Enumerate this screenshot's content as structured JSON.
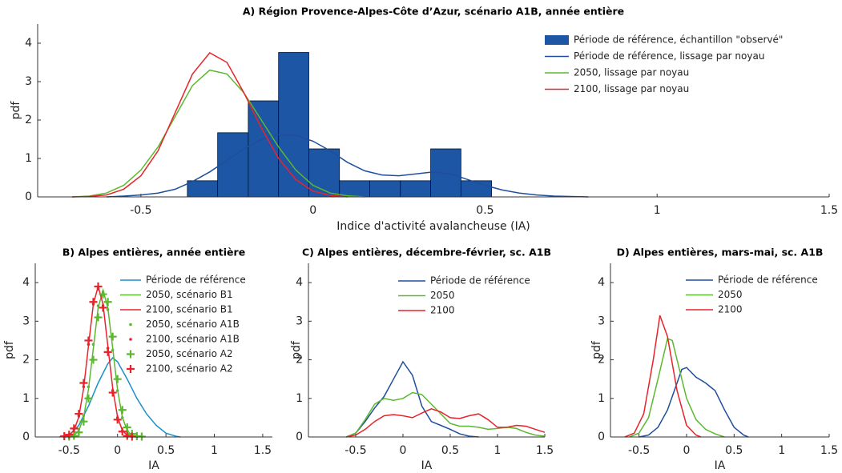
{
  "chart_data": [
    {
      "type": "histogram",
      "title": "A) Région Provence-Alpes-Côte d’Azur, scénario A1B, année entière",
      "xlabel": "Indice d'activité avalancheuse (IA)",
      "ylabel": "pdf",
      "xlim": [
        -0.8,
        1.5
      ],
      "ylim": [
        0,
        4.5
      ],
      "xticks": [
        -0.5,
        0,
        0.5,
        1,
        1.5
      ],
      "yticks": [
        0,
        1,
        2,
        3,
        4
      ],
      "legend": "upper right",
      "name": "Période de référence, échantillon \"observé\"",
      "color": "#1d56a5",
      "bins": [
        -0.365,
        -0.277,
        -0.188,
        -0.1,
        -0.012,
        0.077,
        0.165,
        0.254,
        0.342,
        0.43,
        0.519
      ],
      "values": [
        0.42,
        1.67,
        2.5,
        3.76,
        1.25,
        0.42,
        0.42,
        0.42,
        1.25,
        0.42
      ],
      "series": [
        {
          "name": "Période de référence, lissage par noyau",
          "color": "#1f4e9c",
          "style": "line",
          "x": [
            -0.6,
            -0.55,
            -0.5,
            -0.45,
            -0.4,
            -0.35,
            -0.3,
            -0.25,
            -0.2,
            -0.15,
            -0.1,
            -0.05,
            0,
            0.05,
            0.1,
            0.15,
            0.2,
            0.25,
            0.3,
            0.35,
            0.4,
            0.45,
            0.5,
            0.55,
            0.6,
            0.65,
            0.7,
            0.75,
            0.8
          ],
          "values": [
            0,
            0.02,
            0.05,
            0.1,
            0.2,
            0.4,
            0.65,
            0.95,
            1.25,
            1.5,
            1.62,
            1.6,
            1.45,
            1.2,
            0.9,
            0.68,
            0.57,
            0.55,
            0.6,
            0.65,
            0.6,
            0.45,
            0.3,
            0.18,
            0.1,
            0.05,
            0.02,
            0.01,
            0
          ]
        },
        {
          "name": "2050, lissage par noyau",
          "color": "#5cb82e",
          "style": "line",
          "x": [
            -0.7,
            -0.65,
            -0.6,
            -0.55,
            -0.5,
            -0.45,
            -0.4,
            -0.35,
            -0.3,
            -0.25,
            -0.2,
            -0.15,
            -0.1,
            -0.05,
            0,
            0.05,
            0.1,
            0.15
          ],
          "values": [
            0,
            0.02,
            0.1,
            0.3,
            0.7,
            1.3,
            2.1,
            2.9,
            3.3,
            3.2,
            2.7,
            2.0,
            1.3,
            0.7,
            0.3,
            0.1,
            0.03,
            0
          ]
        },
        {
          "name": "2100, lissage par noyau",
          "color": "#e8232a",
          "style": "line",
          "x": [
            -0.7,
            -0.65,
            -0.6,
            -0.55,
            -0.5,
            -0.45,
            -0.4,
            -0.35,
            -0.3,
            -0.25,
            -0.2,
            -0.15,
            -0.1,
            -0.05,
            0,
            0.05,
            0.1
          ],
          "values": [
            0,
            0.01,
            0.05,
            0.2,
            0.55,
            1.2,
            2.2,
            3.2,
            3.75,
            3.5,
            2.7,
            1.8,
            1.0,
            0.45,
            0.15,
            0.04,
            0
          ]
        }
      ]
    },
    {
      "type": "line",
      "title": "B) Alpes entières, année entière",
      "xlabel": "IA",
      "ylabel": "pdf",
      "xlim": [
        -0.85,
        1.6
      ],
      "ylim": [
        0,
        4.5
      ],
      "xticks": [
        -0.5,
        0,
        0.5,
        1,
        1.5
      ],
      "yticks": [
        0,
        1,
        2,
        3,
        4
      ],
      "legend": "upper right",
      "series": [
        {
          "name": "Période de référence",
          "color": "#1a8fc9",
          "style": "line",
          "x": [
            -0.6,
            -0.5,
            -0.4,
            -0.3,
            -0.2,
            -0.1,
            -0.05,
            0,
            0.1,
            0.2,
            0.3,
            0.4,
            0.5,
            0.6,
            0.65
          ],
          "values": [
            0,
            0.05,
            0.3,
            0.8,
            1.4,
            1.9,
            2.05,
            1.95,
            1.5,
            1.0,
            0.6,
            0.3,
            0.1,
            0.02,
            0
          ]
        },
        {
          "name": "2050, scénario B1",
          "color": "#5cb82e",
          "style": "line",
          "x": [
            -0.5,
            -0.45,
            -0.4,
            -0.35,
            -0.3,
            -0.25,
            -0.2,
            -0.15,
            -0.1,
            -0.05,
            0,
            0.05,
            0.1,
            0.15,
            0.2
          ],
          "values": [
            0.01,
            0.04,
            0.17,
            0.51,
            1.23,
            2.3,
            3.35,
            3.8,
            3.35,
            2.3,
            1.23,
            0.51,
            0.17,
            0.04,
            0.01
          ]
        },
        {
          "name": "2100, scénario B1",
          "color": "#e8232a",
          "style": "line",
          "x": [
            -0.55,
            -0.5,
            -0.45,
            -0.4,
            -0.35,
            -0.3,
            -0.25,
            -0.2,
            -0.15,
            -0.1,
            -0.05,
            0,
            0.05,
            0.1,
            0.15
          ],
          "values": [
            0.01,
            0.04,
            0.17,
            0.52,
            1.26,
            2.36,
            3.44,
            3.9,
            3.44,
            2.36,
            1.26,
            0.52,
            0.17,
            0.04,
            0.01
          ]
        },
        {
          "name": "2050, scénario A1B",
          "color": "#5cb82e",
          "style": "dot",
          "x": [
            -0.5,
            -0.45,
            -0.4,
            -0.35,
            -0.3,
            -0.25,
            -0.2,
            -0.15,
            -0.1,
            -0.05,
            0,
            0.05,
            0.1,
            0.15,
            0.2
          ],
          "values": [
            0.01,
            0.05,
            0.2,
            0.55,
            1.3,
            2.4,
            3.4,
            3.75,
            3.3,
            2.25,
            1.2,
            0.5,
            0.16,
            0.04,
            0.01
          ]
        },
        {
          "name": "2100, scénario A1B",
          "color": "#e8232a",
          "style": "dot",
          "x": [
            -0.55,
            -0.5,
            -0.45,
            -0.4,
            -0.35,
            -0.3,
            -0.25,
            -0.2,
            -0.15,
            -0.1,
            -0.05,
            0,
            0.05,
            0.1,
            0.15
          ],
          "values": [
            0.01,
            0.05,
            0.2,
            0.55,
            1.3,
            2.4,
            3.45,
            3.85,
            3.4,
            2.3,
            1.2,
            0.5,
            0.16,
            0.04,
            0.01
          ]
        },
        {
          "name": "2050, scénario A2",
          "color": "#5cb82e",
          "style": "plus",
          "x": [
            -0.5,
            -0.45,
            -0.4,
            -0.35,
            -0.3,
            -0.25,
            -0.2,
            -0.15,
            -0.1,
            -0.05,
            0,
            0.05,
            0.1,
            0.15,
            0.2,
            0.25
          ],
          "values": [
            0.01,
            0.03,
            0.12,
            0.4,
            1.0,
            2.0,
            3.1,
            3.7,
            3.5,
            2.6,
            1.5,
            0.7,
            0.25,
            0.08,
            0.02,
            0.01
          ]
        },
        {
          "name": "2100, scénario A2",
          "color": "#e8232a",
          "style": "plus",
          "x": [
            -0.55,
            -0.5,
            -0.45,
            -0.4,
            -0.35,
            -0.3,
            -0.25,
            -0.2,
            -0.15,
            -0.1,
            -0.05,
            0,
            0.05,
            0.1,
            0.15
          ],
          "values": [
            0.02,
            0.06,
            0.22,
            0.6,
            1.4,
            2.5,
            3.5,
            3.9,
            3.35,
            2.2,
            1.15,
            0.45,
            0.14,
            0.03,
            0.01
          ]
        }
      ]
    },
    {
      "type": "line",
      "title": "C) Alpes entières, décembre-février, sc. A1B",
      "xlabel": "IA",
      "ylabel": "pdf",
      "xlim": [
        -1,
        1.5
      ],
      "ylim": [
        0,
        4.5
      ],
      "xticks": [
        -0.5,
        0,
        0.5,
        1,
        1.5
      ],
      "yticks": [
        0,
        1,
        2,
        3,
        4
      ],
      "legend": "upper right",
      "series": [
        {
          "name": "Période de référence",
          "color": "#1f4e9c",
          "style": "line",
          "x": [
            -0.6,
            -0.5,
            -0.4,
            -0.3,
            -0.2,
            -0.1,
            0,
            0.1,
            0.2,
            0.3,
            0.4,
            0.5,
            0.6,
            0.7,
            0.8
          ],
          "values": [
            0,
            0.1,
            0.4,
            0.75,
            1.05,
            1.5,
            1.95,
            1.6,
            0.8,
            0.4,
            0.3,
            0.2,
            0.08,
            0.02,
            0
          ]
        },
        {
          "name": "2050",
          "color": "#5cb82e",
          "style": "line",
          "x": [
            -0.6,
            -0.5,
            -0.4,
            -0.3,
            -0.2,
            -0.1,
            0,
            0.1,
            0.2,
            0.3,
            0.4,
            0.5,
            0.6,
            0.7,
            0.8,
            0.9,
            1.0,
            1.1,
            1.2,
            1.3,
            1.4,
            1.5
          ],
          "values": [
            0,
            0.1,
            0.45,
            0.85,
            1.0,
            0.95,
            1.0,
            1.15,
            1.1,
            0.85,
            0.6,
            0.35,
            0.28,
            0.28,
            0.25,
            0.2,
            0.22,
            0.25,
            0.22,
            0.12,
            0.05,
            0.02
          ]
        },
        {
          "name": "2100",
          "color": "#e8232a",
          "style": "line",
          "x": [
            -0.6,
            -0.5,
            -0.4,
            -0.3,
            -0.2,
            -0.1,
            0,
            0.1,
            0.2,
            0.3,
            0.4,
            0.5,
            0.6,
            0.7,
            0.8,
            0.9,
            1.0,
            1.1,
            1.2,
            1.3,
            1.4,
            1.5
          ],
          "values": [
            0,
            0.05,
            0.2,
            0.4,
            0.55,
            0.58,
            0.55,
            0.5,
            0.62,
            0.73,
            0.65,
            0.5,
            0.48,
            0.55,
            0.6,
            0.45,
            0.25,
            0.25,
            0.3,
            0.28,
            0.2,
            0.12
          ]
        }
      ]
    },
    {
      "type": "line",
      "title": "D) Alpes entières, mars-mai, sc. A1B",
      "xlabel": "IA",
      "ylabel": "pdf",
      "xlim": [
        -0.8,
        1.5
      ],
      "ylim": [
        0,
        4.5
      ],
      "xticks": [
        -0.5,
        0,
        0.5,
        1,
        1.5
      ],
      "yticks": [
        0,
        1,
        2,
        3,
        4
      ],
      "legend": "upper right",
      "series": [
        {
          "name": "Période de référence",
          "color": "#1f4e9c",
          "style": "line",
          "x": [
            -0.5,
            -0.4,
            -0.3,
            -0.2,
            -0.1,
            -0.05,
            0,
            0.1,
            0.2,
            0.3,
            0.4,
            0.5,
            0.6,
            0.65
          ],
          "values": [
            0,
            0.05,
            0.25,
            0.7,
            1.4,
            1.75,
            1.8,
            1.55,
            1.4,
            1.2,
            0.7,
            0.25,
            0.05,
            0
          ]
        },
        {
          "name": "2050",
          "color": "#5cb82e",
          "style": "line",
          "x": [
            -0.6,
            -0.5,
            -0.4,
            -0.3,
            -0.2,
            -0.15,
            -0.1,
            0,
            0.1,
            0.2,
            0.3,
            0.4
          ],
          "values": [
            0,
            0.1,
            0.5,
            1.5,
            2.55,
            2.5,
            2.0,
            1.0,
            0.45,
            0.2,
            0.08,
            0
          ]
        },
        {
          "name": "2100",
          "color": "#e8232a",
          "style": "line",
          "x": [
            -0.65,
            -0.55,
            -0.45,
            -0.35,
            -0.28,
            -0.2,
            -0.1,
            0,
            0.1,
            0.15
          ],
          "values": [
            0,
            0.1,
            0.6,
            2.0,
            3.15,
            2.6,
            1.2,
            0.3,
            0.05,
            0
          ]
        }
      ]
    }
  ]
}
